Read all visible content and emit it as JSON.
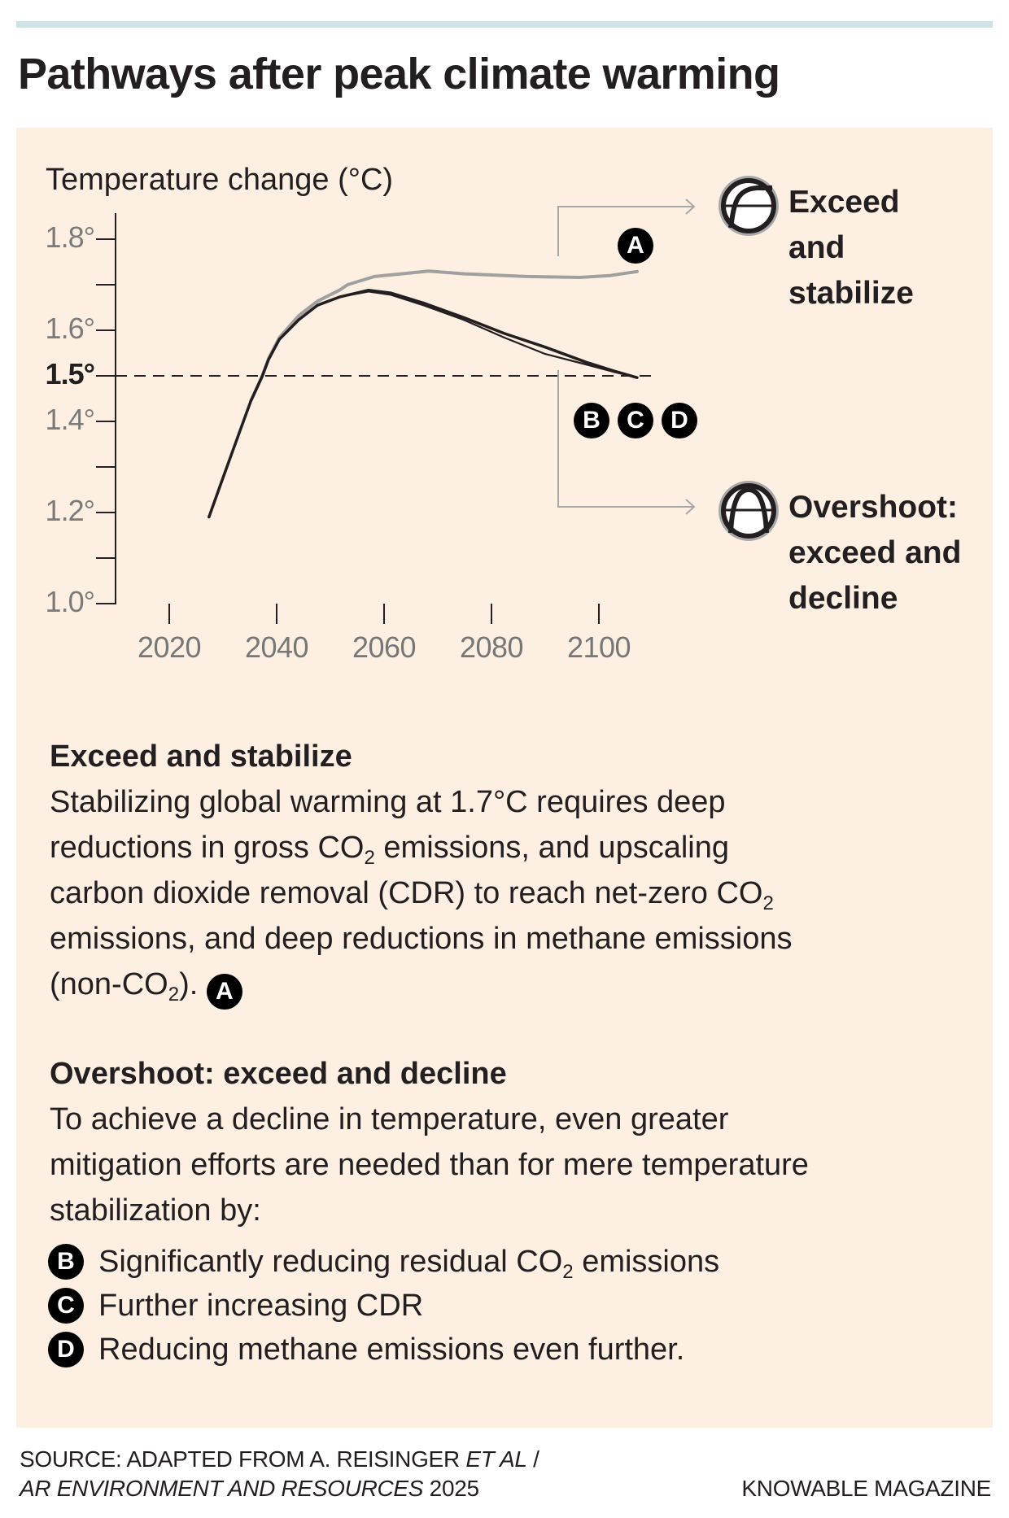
{
  "title": "Pathways after peak climate warming",
  "colors": {
    "top_rule": "#cde3e5",
    "panel_bg": "#fdefe2",
    "line_stabilize": "#a0a0a0",
    "line_overshoot": "#231f20",
    "tick_label": "#7b7b7b",
    "badge_bg": "#000000",
    "badge_fg": "#ffffff",
    "connector": "#a8a8a8"
  },
  "chart_data": {
    "type": "line",
    "title": "",
    "ylabel": "Temperature change (°C)",
    "xlabel": "",
    "xlim": [
      2020,
      2108
    ],
    "ylim": [
      1.0,
      1.85
    ],
    "x_ticks": [
      2020,
      2040,
      2060,
      2080,
      2100
    ],
    "x_tick_labels": [
      "2020",
      "2040",
      "2060",
      "2080",
      "2100"
    ],
    "y_ticks": [
      1.0,
      1.1,
      1.2,
      1.3,
      1.4,
      1.5,
      1.6,
      1.7,
      1.8
    ],
    "y_tick_labels": [
      {
        "value": 1.0,
        "label": "1.0°"
      },
      {
        "value": 1.2,
        "label": "1.2°"
      },
      {
        "value": 1.4,
        "label": "1.4°"
      },
      {
        "value": 1.5,
        "label": "1.5°",
        "emphasis": true
      },
      {
        "value": 1.6,
        "label": "1.6°"
      },
      {
        "value": 1.8,
        "label": "1.8°"
      }
    ],
    "reference_line": {
      "y": 1.5,
      "style": "dashed",
      "x_end": 2110
    },
    "grid": false,
    "series": [
      {
        "name": "Exceed and stabilize",
        "marker": "A",
        "color": "#a0a0a0",
        "x": [
          2035.2,
          2037.3,
          2038.5,
          2040.5,
          2044.1,
          2047.6,
          2051.7,
          2053.2,
          2058.2,
          2064.2,
          2068.3,
          2075,
          2086.5,
          2096.5,
          2102,
          2107.1
        ],
        "y": [
          1.445,
          1.499,
          1.538,
          1.584,
          1.632,
          1.664,
          1.688,
          1.7,
          1.718,
          1.725,
          1.73,
          1.724,
          1.718,
          1.716,
          1.72,
          1.729
        ]
      },
      {
        "name": "Overshoot: exceed and decline (B)",
        "marker": "B",
        "color": "#231f20",
        "x": [
          2027.4,
          2029.7,
          2032.7,
          2035.2,
          2037.3,
          2038.5,
          2040.5,
          2044.1,
          2047.6,
          2051.7,
          2057.1,
          2061.2,
          2067.3,
          2074.8,
          2082.4,
          2090,
          2097.6,
          2103,
          2107.1
        ],
        "y": [
          1.19,
          1.266,
          1.364,
          1.445,
          1.499,
          1.536,
          1.58,
          1.623,
          1.655,
          1.673,
          1.688,
          1.682,
          1.66,
          1.628,
          1.593,
          1.563,
          1.53,
          1.51,
          1.496
        ]
      },
      {
        "name": "Overshoot: exceed and decline (C, D)",
        "marker": "C/D",
        "color": "#231f20",
        "x": [
          2027.4,
          2029.7,
          2032.7,
          2035.2,
          2037.3,
          2038.5,
          2040.5,
          2044.1,
          2047.6,
          2051.7,
          2057.1,
          2061.2,
          2067.3,
          2074.8,
          2082.4,
          2090,
          2097.6,
          2103,
          2107.1
        ],
        "y": [
          1.19,
          1.266,
          1.364,
          1.445,
          1.499,
          1.536,
          1.58,
          1.623,
          1.655,
          1.673,
          1.685,
          1.678,
          1.655,
          1.623,
          1.584,
          1.548,
          1.525,
          1.508,
          1.496
        ]
      }
    ],
    "annotations": [
      {
        "text": "A",
        "near": "Exceed and stabilize line end",
        "x": 2107,
        "y": 1.79
      },
      {
        "text": "B",
        "x": 2098.5,
        "y": 1.41
      },
      {
        "text": "C",
        "x": 2107,
        "y": 1.41
      },
      {
        "text": "D",
        "x": 2115,
        "y": 1.41
      }
    ]
  },
  "pathways": [
    {
      "icon": "exceed-stabilize-icon",
      "label_lines": [
        "Exceed",
        "and",
        "stabilize"
      ]
    },
    {
      "icon": "overshoot-icon",
      "label_lines": [
        "Overshoot:",
        "exceed and",
        "decline"
      ]
    }
  ],
  "badges": {
    "a": "A",
    "b": "B",
    "c": "C",
    "d": "D"
  },
  "sections": {
    "stabilize": {
      "heading": "Exceed and stabilize",
      "line1": "Stabilizing global warming at 1.7°C requires deep",
      "line2_a": "reductions in gross CO",
      "line2_sub": "2",
      "line2_b": " emissions, and upscaling",
      "line3_a": "carbon dioxide removal (CDR) to reach net-zero CO",
      "line3_sub": "2",
      "line4": "emissions, and deep reductions in methane emissions",
      "line5_a": "(non-CO",
      "line5_sub": "2",
      "line5_b": ").",
      "badge": "A"
    },
    "overshoot": {
      "heading": "Overshoot: exceed and decline",
      "line1": "To achieve a decline in temperature, even greater",
      "line2": "mitigation efforts are needed than for mere temperature",
      "line3": "stabilization by:",
      "bullets": [
        {
          "badge": "B",
          "text_a": "Significantly reducing residual CO",
          "sub": "2",
          "text_b": " emissions"
        },
        {
          "badge": "C",
          "text_a": "Further increasing CDR",
          "sub": "",
          "text_b": ""
        },
        {
          "badge": "D",
          "text_a": "Reducing methane emissions even further.",
          "sub": "",
          "text_b": ""
        }
      ]
    }
  },
  "footer": {
    "source_prefix": "SOURCE: ADAPTED FROM A. REISINGER ",
    "source_etal": "ET AL",
    "source_slash": " /",
    "source_journal": "AR ENVIRONMENT AND RESOURCES",
    "source_year": " 2025",
    "brand": "KNOWABLE MAGAZINE"
  }
}
